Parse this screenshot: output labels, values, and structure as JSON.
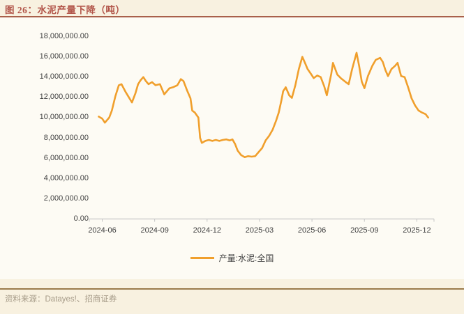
{
  "header": {
    "title": "图 26：水泥产量下降（吨）"
  },
  "legend": {
    "label": "产量:水泥:全国"
  },
  "footer": {
    "source": "资料来源：Datayes!、招商证券"
  },
  "colors": {
    "line": "#F09F2C",
    "title_text": "#B25549",
    "title_rule": "#A9604A",
    "bottom_rule": "#9A7A4A",
    "axis_line": "#C6C6C6",
    "axis_text": "#404040",
    "source_text": "#A59A87",
    "page_bg": "#F8F1E0",
    "chart_bg": "#FDFBF4"
  },
  "chart_data": {
    "type": "line",
    "title": "水泥产量下降（吨）",
    "series_name": "产量:水泥:全国",
    "y_unit": "吨 (tons)",
    "ylim": [
      0,
      18000000
    ],
    "y_tick_step": 2000000,
    "y_tick_labels": [
      "18,000,000.00",
      "16,000,000.00",
      "14,000,000.00",
      "12,000,000.00",
      "10,000,000.00",
      "8,000,000.00",
      "6,000,000.00",
      "4,000,000.00",
      "2,000,000.00",
      "0.00"
    ],
    "x_tick_labels": [
      "2024-06",
      "2024-09",
      "2024-12",
      "2025-03",
      "2025-06",
      "2025-09",
      "2025-12"
    ],
    "x_unit": "months_since_2024-06",
    "grid": false,
    "legend_position": "bottom",
    "points": [
      [
        -0.2,
        10100000
      ],
      [
        0.0,
        9900000
      ],
      [
        0.15,
        9500000
      ],
      [
        0.4,
        10000000
      ],
      [
        0.55,
        10700000
      ],
      [
        0.75,
        12100000
      ],
      [
        0.95,
        13200000
      ],
      [
        1.1,
        13300000
      ],
      [
        1.35,
        12500000
      ],
      [
        1.7,
        11500000
      ],
      [
        1.9,
        12400000
      ],
      [
        2.05,
        13300000
      ],
      [
        2.2,
        13700000
      ],
      [
        2.35,
        14000000
      ],
      [
        2.5,
        13600000
      ],
      [
        2.65,
        13300000
      ],
      [
        2.85,
        13500000
      ],
      [
        3.05,
        13200000
      ],
      [
        3.3,
        13300000
      ],
      [
        3.55,
        12300000
      ],
      [
        3.85,
        12900000
      ],
      [
        4.05,
        13000000
      ],
      [
        4.3,
        13200000
      ],
      [
        4.5,
        13800000
      ],
      [
        4.65,
        13600000
      ],
      [
        4.85,
        12700000
      ],
      [
        5.05,
        11900000
      ],
      [
        5.15,
        10700000
      ],
      [
        5.3,
        10500000
      ],
      [
        5.5,
        10000000
      ],
      [
        5.6,
        8000000
      ],
      [
        5.7,
        7500000
      ],
      [
        5.9,
        7700000
      ],
      [
        6.1,
        7800000
      ],
      [
        6.3,
        7700000
      ],
      [
        6.5,
        7800000
      ],
      [
        6.7,
        7700000
      ],
      [
        6.9,
        7800000
      ],
      [
        7.1,
        7850000
      ],
      [
        7.3,
        7750000
      ],
      [
        7.45,
        7850000
      ],
      [
        7.6,
        7400000
      ],
      [
        7.75,
        6750000
      ],
      [
        7.95,
        6300000
      ],
      [
        8.15,
        6100000
      ],
      [
        8.35,
        6200000
      ],
      [
        8.55,
        6150000
      ],
      [
        8.75,
        6200000
      ],
      [
        8.95,
        6600000
      ],
      [
        9.15,
        7000000
      ],
      [
        9.35,
        7750000
      ],
      [
        9.55,
        8200000
      ],
      [
        9.75,
        8800000
      ],
      [
        9.95,
        9700000
      ],
      [
        10.1,
        10500000
      ],
      [
        10.25,
        11700000
      ],
      [
        10.35,
        12600000
      ],
      [
        10.5,
        13000000
      ],
      [
        10.7,
        12200000
      ],
      [
        10.85,
        11950000
      ],
      [
        11.05,
        13200000
      ],
      [
        11.25,
        14800000
      ],
      [
        11.45,
        16000000
      ],
      [
        11.6,
        15400000
      ],
      [
        11.75,
        14800000
      ],
      [
        11.95,
        14300000
      ],
      [
        12.1,
        13900000
      ],
      [
        12.3,
        14150000
      ],
      [
        12.5,
        14000000
      ],
      [
        12.7,
        13100000
      ],
      [
        12.85,
        12200000
      ],
      [
        13.1,
        14300000
      ],
      [
        13.2,
        15400000
      ],
      [
        13.45,
        14250000
      ],
      [
        13.65,
        13900000
      ],
      [
        13.9,
        13550000
      ],
      [
        14.1,
        13300000
      ],
      [
        14.3,
        14800000
      ],
      [
        14.55,
        16400000
      ],
      [
        14.7,
        15100000
      ],
      [
        14.85,
        13550000
      ],
      [
        15.0,
        12900000
      ],
      [
        15.2,
        14100000
      ],
      [
        15.45,
        15100000
      ],
      [
        15.65,
        15700000
      ],
      [
        15.9,
        15900000
      ],
      [
        16.05,
        15500000
      ],
      [
        16.2,
        14700000
      ],
      [
        16.35,
        14100000
      ],
      [
        16.55,
        14800000
      ],
      [
        16.75,
        15100000
      ],
      [
        16.9,
        15400000
      ],
      [
        17.1,
        14100000
      ],
      [
        17.3,
        14000000
      ],
      [
        17.5,
        13000000
      ],
      [
        17.7,
        11900000
      ],
      [
        17.9,
        11200000
      ],
      [
        18.1,
        10700000
      ],
      [
        18.3,
        10500000
      ],
      [
        18.5,
        10350000
      ],
      [
        18.65,
        10000000
      ]
    ]
  }
}
